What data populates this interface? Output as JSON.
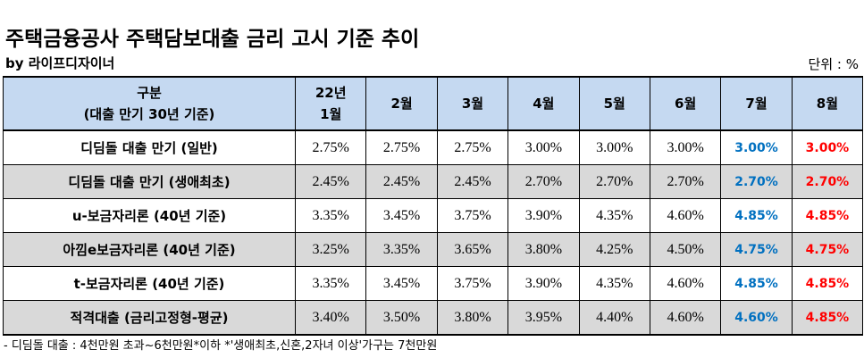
{
  "title": "주택금융공사 주택담보대출 금리 고시 기준 추이",
  "byline": "by 라이프디자이너",
  "unit": "단위 : %",
  "table": {
    "header": [
      [
        "구분",
        "(대출 만기 30년 기준)"
      ],
      [
        "22년",
        "1월"
      ],
      [
        "2월"
      ],
      [
        "3월"
      ],
      [
        "4월"
      ],
      [
        "5월"
      ],
      [
        "6월"
      ],
      [
        "7월"
      ],
      [
        "8월"
      ]
    ],
    "rows": [
      [
        "디딤돌 대출 만기 (일반)",
        "2.75%",
        "2.75%",
        "2.75%",
        "3.00%",
        "3.00%",
        "3.00%",
        "3.00%",
        "3.00%"
      ],
      [
        "디딤돌 대출 만기 (생애최초)",
        "2.45%",
        "2.45%",
        "2.45%",
        "2.70%",
        "2.70%",
        "2.70%",
        "2.70%",
        "2.70%"
      ],
      [
        "u-보금자리론 (40년 기준)",
        "3.35%",
        "3.45%",
        "3.75%",
        "3.90%",
        "4.35%",
        "4.60%",
        "4.85%",
        "4.85%"
      ],
      [
        "아낌e보금자리론 (40년 기준)",
        "3.25%",
        "3.35%",
        "3.65%",
        "3.80%",
        "4.25%",
        "4.50%",
        "4.75%",
        "4.75%"
      ],
      [
        "t-보금자리론 (40년 기준)",
        "3.35%",
        "3.45%",
        "3.75%",
        "3.90%",
        "4.35%",
        "4.60%",
        "4.85%",
        "4.85%"
      ],
      [
        "적격대출 (금리고정형-평균)",
        "3.40%",
        "3.50%",
        "3.80%",
        "3.95%",
        "4.40%",
        "4.60%",
        "4.60%",
        "4.85%"
      ]
    ]
  },
  "footnote": "- 디딤돌 대출 : 4천만원 초과~6천만원*이하 *'생애최초,신혼,2자녀 이상'가구는 7천만원"
}
